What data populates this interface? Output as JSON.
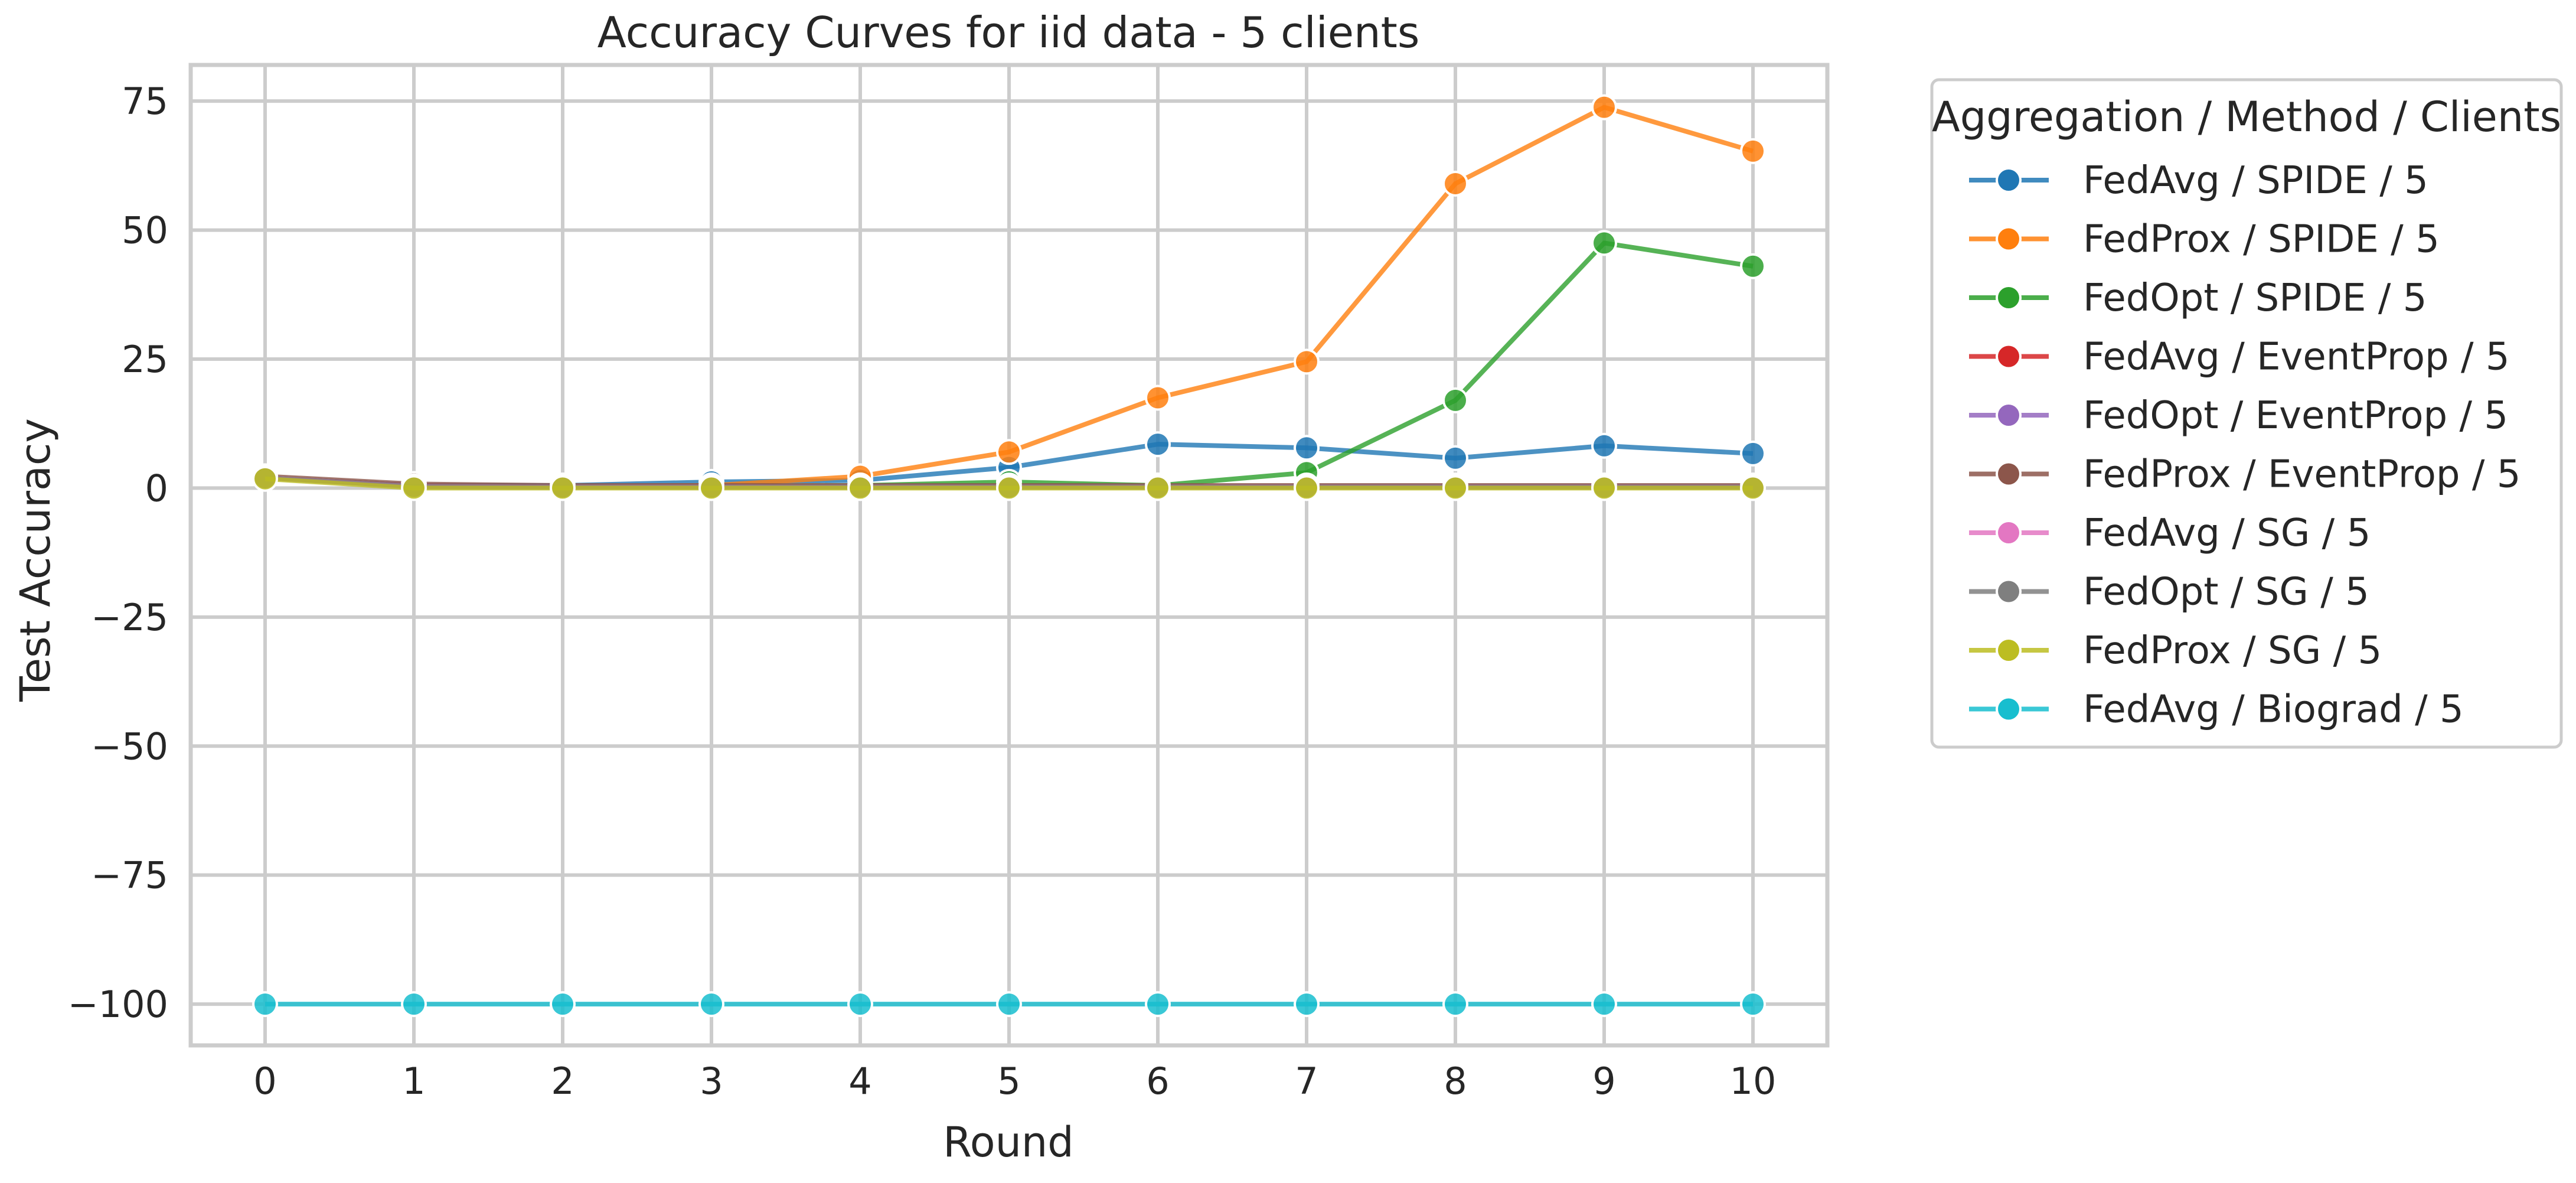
{
  "chart_data": {
    "type": "line",
    "title": "Accuracy Curves for iid data - 5 clients",
    "xlabel": "Round",
    "ylabel": "Test Accuracy",
    "x": [
      0,
      1,
      2,
      3,
      4,
      5,
      6,
      7,
      8,
      9,
      10
    ],
    "xlim": [
      -0.5,
      10.5
    ],
    "ylim": [
      -108,
      82
    ],
    "xticks": [
      "0",
      "1",
      "2",
      "3",
      "4",
      "5",
      "6",
      "7",
      "8",
      "9",
      "10"
    ],
    "yticks": [
      {
        "value": 75,
        "label": "75"
      },
      {
        "value": 50,
        "label": "50"
      },
      {
        "value": 25,
        "label": "25"
      },
      {
        "value": 0,
        "label": "0"
      },
      {
        "value": -25,
        "label": "−25"
      },
      {
        "value": -50,
        "label": "−50"
      },
      {
        "value": -75,
        "label": "−75"
      },
      {
        "value": -100,
        "label": "−100"
      }
    ],
    "grid": true,
    "legend": {
      "title": "Aggregation / Method / Clients",
      "placement": "outside-right-top"
    },
    "series": [
      {
        "name": "FedAvg / SPIDE / 5",
        "color": "#1f77b4",
        "values": [
          2,
          0.5,
          0.5,
          1.2,
          1.5,
          4,
          8.5,
          7.8,
          5.8,
          8.2,
          6.7
        ]
      },
      {
        "name": "FedProx / SPIDE / 5",
        "color": "#ff7f0e",
        "values": [
          2,
          0.5,
          0.3,
          0.5,
          2.3,
          7,
          17.5,
          24.5,
          59,
          73.8,
          65.3
        ]
      },
      {
        "name": "FedOpt / SPIDE / 5",
        "color": "#2ca02c",
        "values": [
          2,
          0.5,
          0.3,
          0.3,
          0.5,
          1.2,
          0.5,
          3,
          17,
          47.5,
          43
        ]
      },
      {
        "name": "FedAvg / EventProp / 5",
        "color": "#d62728",
        "values": [
          2,
          0.5,
          0.3,
          0.3,
          0.3,
          0.3,
          0.3,
          0.3,
          0.3,
          0.3,
          0.3
        ]
      },
      {
        "name": "FedOpt / EventProp / 5",
        "color": "#9467bd",
        "values": [
          2,
          0.5,
          0.3,
          0.3,
          0.3,
          0.3,
          0.3,
          0.3,
          0.3,
          0.3,
          0.3
        ]
      },
      {
        "name": "FedProx / EventProp / 5",
        "color": "#8c564b",
        "values": [
          2.3,
          0.8,
          0.5,
          0.5,
          0.5,
          0.5,
          0.5,
          0.5,
          0.5,
          0.5,
          0.5
        ]
      },
      {
        "name": "FedAvg / SG / 5",
        "color": "#e377c2",
        "values": [
          2,
          0.3,
          0.2,
          0.2,
          0.2,
          0.2,
          0.2,
          0.2,
          0.2,
          0.2,
          0.2
        ]
      },
      {
        "name": "FedOpt / SG / 5",
        "color": "#7f7f7f",
        "values": [
          2,
          0.3,
          0.2,
          0.2,
          0.2,
          0.2,
          0.2,
          0.2,
          0.2,
          0.2,
          0.2
        ]
      },
      {
        "name": "FedProx / SG / 5",
        "color": "#bcbd22",
        "values": [
          1.8,
          0,
          0,
          0,
          0,
          0,
          0,
          0,
          0,
          0,
          0
        ]
      },
      {
        "name": "FedAvg / Biograd / 5",
        "color": "#17becf",
        "values": [
          -100,
          -100,
          -100,
          -100,
          -100,
          -100,
          -100,
          -100,
          -100,
          -100,
          -100
        ]
      }
    ]
  }
}
